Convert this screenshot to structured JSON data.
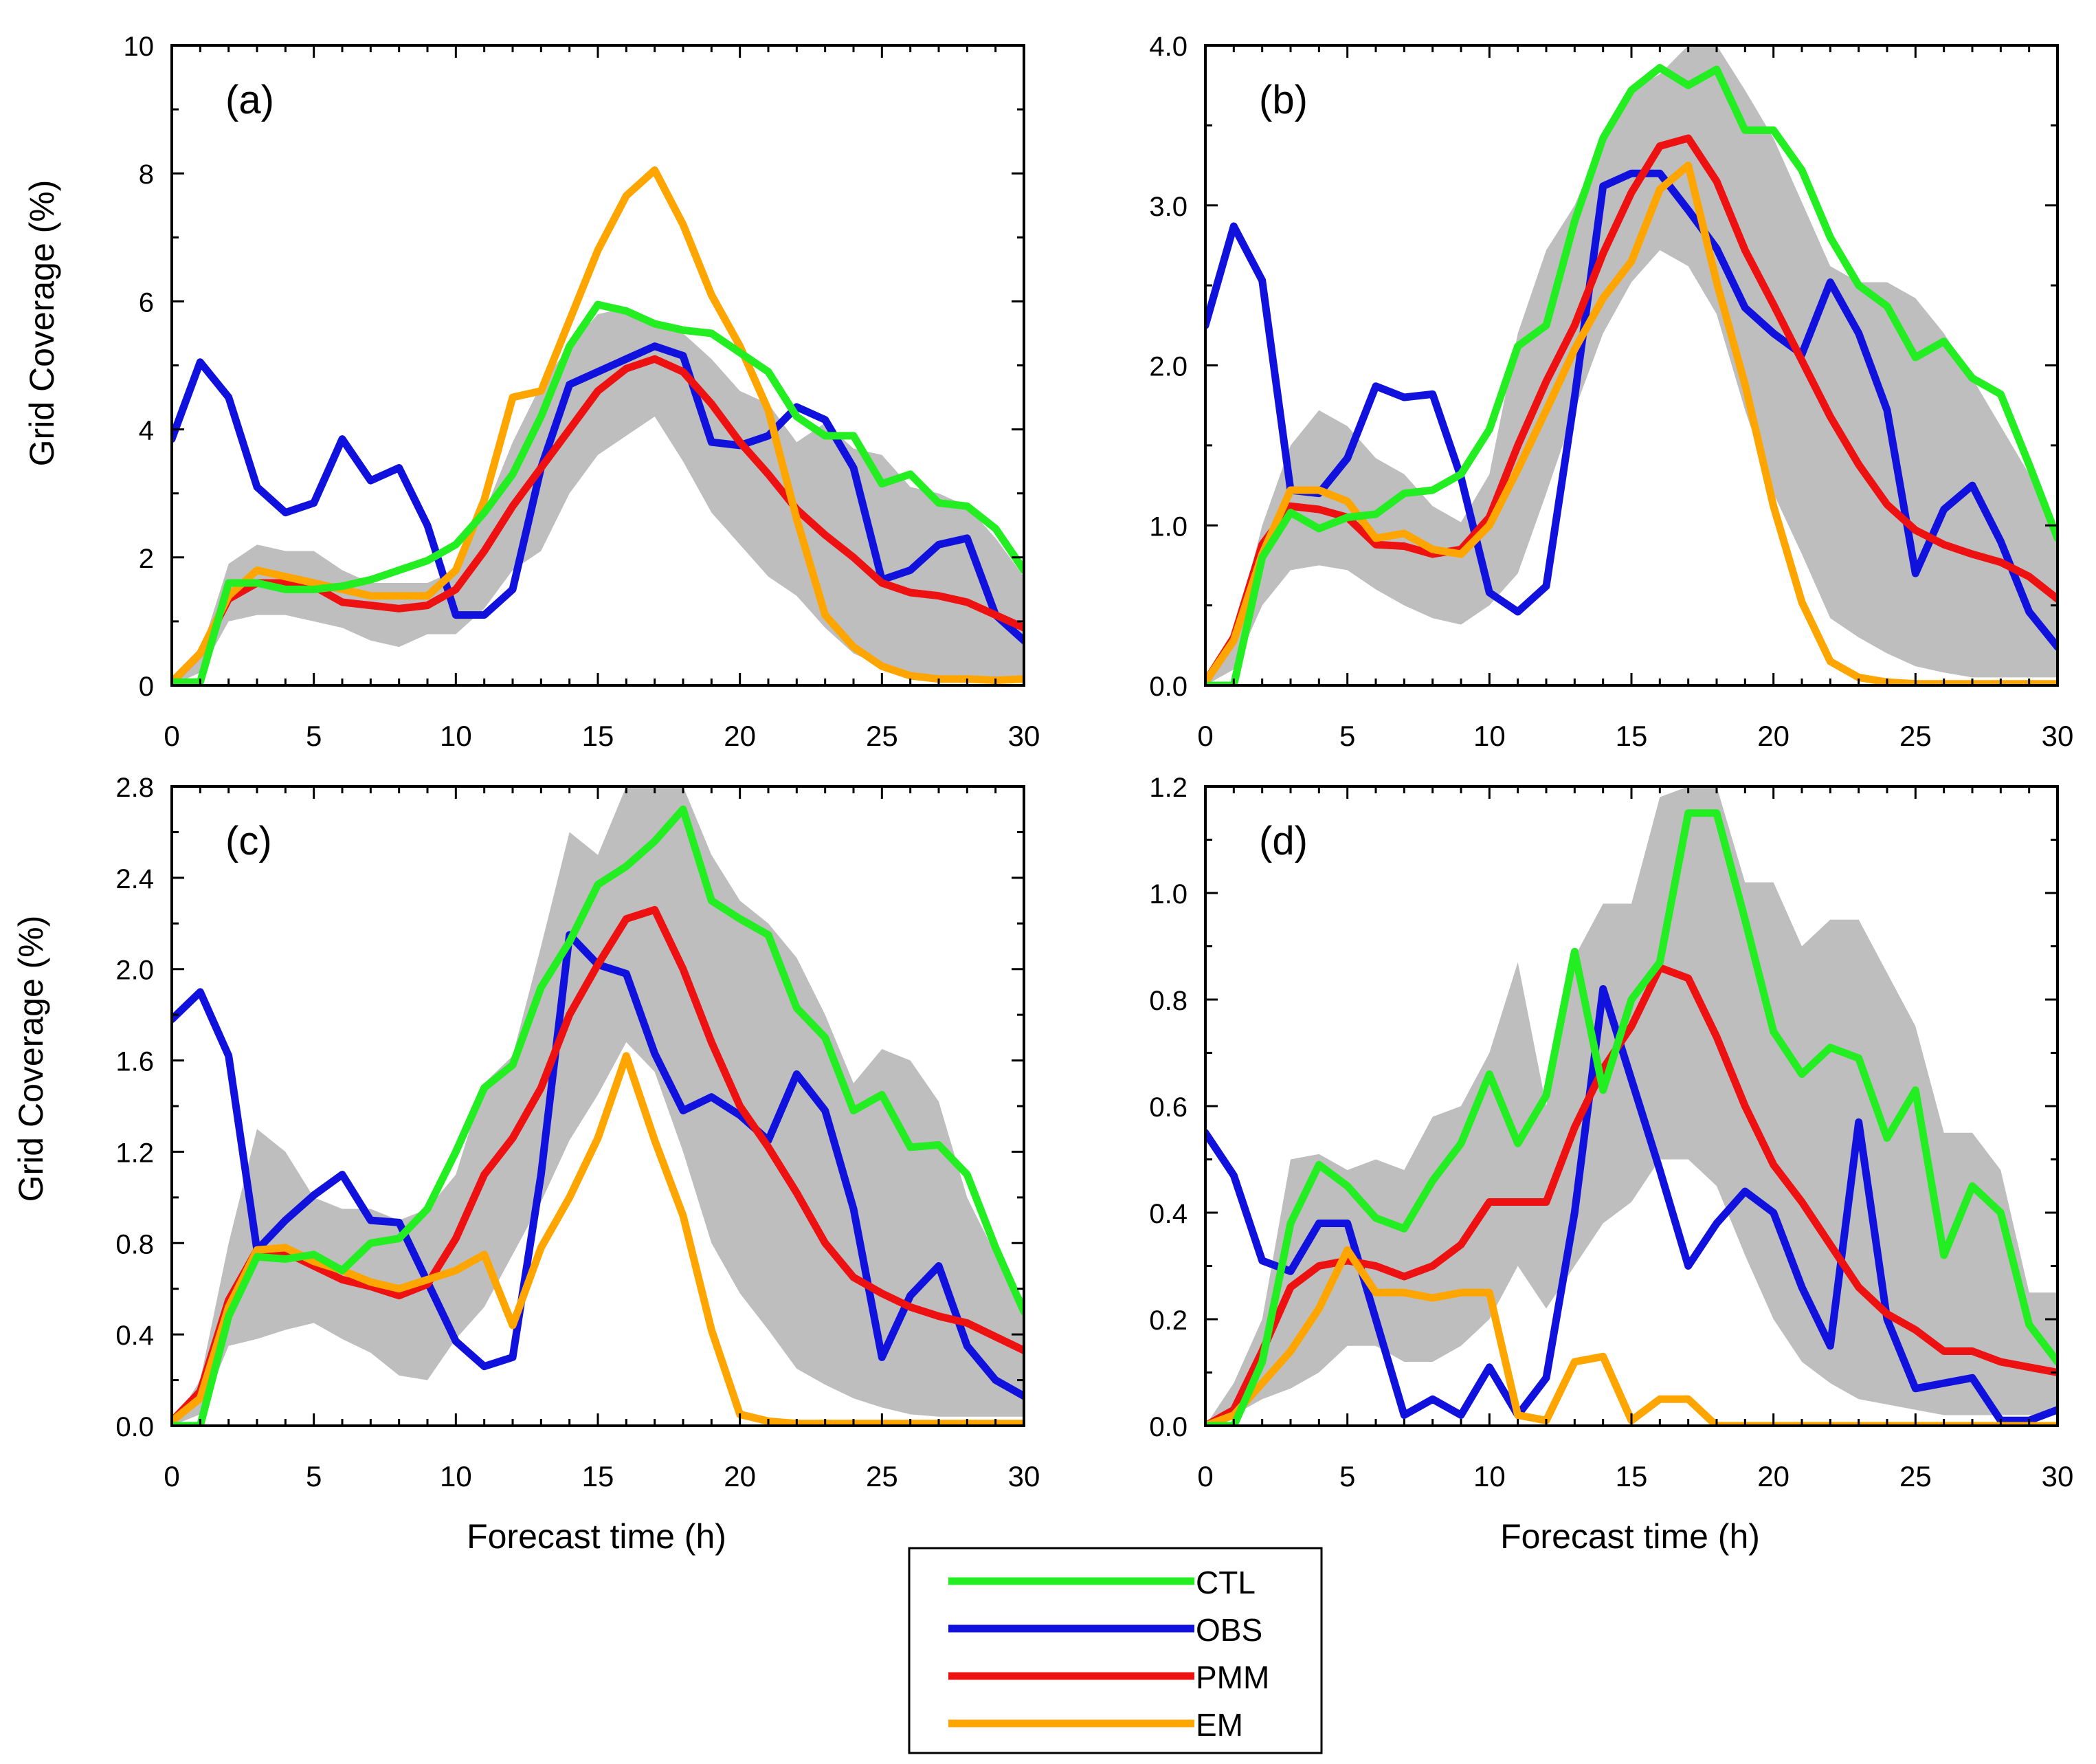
{
  "figure": {
    "x_axis_label": "Forecast time (h)",
    "y_axis_label": "Grid Coverage (%)"
  },
  "legend": {
    "entries": [
      {
        "name": "CTL",
        "color": "#22ee22"
      },
      {
        "name": "OBS",
        "color": "#1111dd"
      },
      {
        "name": "PMM",
        "color": "#ee1111"
      },
      {
        "name": "EM",
        "color": "#ffa500"
      }
    ]
  },
  "colors": {
    "CTL": "#22ee22",
    "OBS": "#1111dd",
    "PMM": "#ee1111",
    "EM": "#ffa500",
    "spread": "#bebebe"
  },
  "chart_data": [
    {
      "type": "line",
      "panel_label": "(a)",
      "xlim": [
        0,
        30
      ],
      "ylim": [
        0,
        10
      ],
      "x_ticks": [
        0,
        5,
        10,
        15,
        20,
        25,
        30
      ],
      "y_ticks": [
        0,
        2,
        4,
        6,
        8,
        10
      ],
      "y_tick_labels": [
        "0",
        "2",
        "4",
        "6",
        "8",
        "10"
      ],
      "x": [
        0,
        1,
        2,
        3,
        4,
        5,
        6,
        7,
        8,
        9,
        10,
        11,
        12,
        13,
        14,
        15,
        16,
        17,
        18,
        19,
        20,
        21,
        22,
        23,
        24,
        25,
        26,
        27,
        28,
        29,
        30
      ],
      "spread_upper": [
        0,
        0.5,
        1.9,
        2.2,
        2.1,
        2.1,
        1.8,
        1.6,
        1.6,
        1.6,
        1.8,
        2.7,
        3.8,
        4.7,
        5.3,
        5.8,
        5.9,
        5.6,
        5.5,
        5.1,
        4.6,
        4.4,
        3.8,
        4.1,
        3.7,
        3.6,
        3.1,
        3.0,
        2.8,
        2.3,
        1.7
      ],
      "spread_lower": [
        0,
        0.2,
        1.0,
        1.1,
        1.1,
        1.0,
        0.9,
        0.7,
        0.6,
        0.8,
        0.8,
        1.2,
        1.8,
        2.1,
        3.0,
        3.6,
        3.9,
        4.2,
        3.5,
        2.7,
        2.2,
        1.7,
        1.4,
        0.9,
        0.5,
        0.3,
        0.2,
        0.1,
        0.1,
        0.1,
        0.1
      ],
      "series": [
        {
          "name": "CTL",
          "values": [
            0.05,
            0.05,
            1.6,
            1.6,
            1.5,
            1.5,
            1.55,
            1.65,
            1.8,
            1.95,
            2.2,
            2.7,
            3.3,
            4.2,
            5.3,
            5.95,
            5.85,
            5.65,
            5.55,
            5.5,
            5.2,
            4.9,
            4.2,
            3.9,
            3.9,
            3.15,
            3.3,
            2.85,
            2.8,
            2.45,
            1.8
          ]
        },
        {
          "name": "OBS",
          "values": [
            3.85,
            5.05,
            4.5,
            3.1,
            2.7,
            2.85,
            3.85,
            3.2,
            3.4,
            2.5,
            1.1,
            1.1,
            1.5,
            3.4,
            4.7,
            4.9,
            5.1,
            5.3,
            5.15,
            3.8,
            3.75,
            3.9,
            4.35,
            4.15,
            3.4,
            1.65,
            1.8,
            2.2,
            2.3,
            1.1,
            0.7
          ]
        },
        {
          "name": "PMM",
          "values": [
            0.05,
            0.5,
            1.35,
            1.6,
            1.6,
            1.55,
            1.3,
            1.25,
            1.2,
            1.25,
            1.5,
            2.1,
            2.8,
            3.4,
            4.0,
            4.6,
            4.95,
            5.1,
            4.9,
            4.4,
            3.8,
            3.3,
            2.75,
            2.35,
            2.0,
            1.6,
            1.45,
            1.4,
            1.3,
            1.1,
            0.9
          ]
        },
        {
          "name": "EM",
          "values": [
            0.05,
            0.5,
            1.4,
            1.8,
            1.7,
            1.6,
            1.5,
            1.4,
            1.4,
            1.4,
            1.8,
            2.9,
            4.5,
            4.6,
            5.7,
            6.8,
            7.65,
            8.05,
            7.2,
            6.1,
            5.3,
            4.3,
            2.6,
            1.1,
            0.6,
            0.3,
            0.15,
            0.1,
            0.1,
            0.08,
            0.1
          ]
        }
      ]
    },
    {
      "type": "line",
      "panel_label": "(b)",
      "xlim": [
        0,
        30
      ],
      "ylim": [
        0,
        4
      ],
      "x_ticks": [
        0,
        5,
        10,
        15,
        20,
        25,
        30
      ],
      "y_ticks": [
        0,
        1,
        2,
        3,
        4
      ],
      "y_tick_labels": [
        "0.0",
        "1.0",
        "2.0",
        "3.0",
        "4.0"
      ],
      "x": [
        0,
        1,
        2,
        3,
        4,
        5,
        6,
        7,
        8,
        9,
        10,
        11,
        12,
        13,
        14,
        15,
        16,
        17,
        18,
        19,
        20,
        21,
        22,
        23,
        24,
        25,
        26,
        27,
        28,
        29,
        30
      ],
      "spread_upper": [
        0,
        0.3,
        1.0,
        1.5,
        1.72,
        1.62,
        1.42,
        1.32,
        1.12,
        1.02,
        1.32,
        2.2,
        2.72,
        3.0,
        3.42,
        3.72,
        3.82,
        4.0,
        4.0,
        3.72,
        3.42,
        3.02,
        2.62,
        2.52,
        2.52,
        2.42,
        2.2,
        1.92,
        1.62,
        1.32,
        0.92
      ],
      "spread_lower": [
        0,
        0.1,
        0.5,
        0.72,
        0.75,
        0.72,
        0.6,
        0.5,
        0.42,
        0.38,
        0.5,
        0.7,
        1.2,
        1.72,
        2.2,
        2.52,
        2.72,
        2.62,
        2.32,
        1.72,
        1.2,
        0.82,
        0.42,
        0.3,
        0.2,
        0.12,
        0.08,
        0.05,
        0.05,
        0.05,
        0.05
      ],
      "series": [
        {
          "name": "CTL",
          "values": [
            0.0,
            0.0,
            0.8,
            1.08,
            0.98,
            1.05,
            1.07,
            1.2,
            1.22,
            1.32,
            1.6,
            2.12,
            2.25,
            2.9,
            3.42,
            3.72,
            3.86,
            3.75,
            3.85,
            3.47,
            3.47,
            3.22,
            2.8,
            2.5,
            2.37,
            2.05,
            2.15,
            1.92,
            1.82,
            1.38,
            0.92
          ]
        },
        {
          "name": "OBS",
          "values": [
            2.25,
            2.87,
            2.53,
            1.22,
            1.2,
            1.42,
            1.87,
            1.8,
            1.82,
            1.3,
            0.58,
            0.46,
            0.62,
            1.8,
            3.12,
            3.2,
            3.2,
            2.97,
            2.73,
            2.36,
            2.2,
            2.07,
            2.52,
            2.2,
            1.72,
            0.7,
            1.1,
            1.25,
            0.9,
            0.46,
            0.24
          ]
        },
        {
          "name": "PMM",
          "values": [
            0.02,
            0.3,
            0.88,
            1.12,
            1.1,
            1.05,
            0.88,
            0.87,
            0.82,
            0.85,
            1.05,
            1.5,
            1.9,
            2.25,
            2.7,
            3.08,
            3.37,
            3.42,
            3.15,
            2.72,
            2.38,
            2.03,
            1.68,
            1.38,
            1.13,
            0.97,
            0.88,
            0.82,
            0.77,
            0.68,
            0.54
          ]
        },
        {
          "name": "EM",
          "values": [
            0.02,
            0.28,
            0.82,
            1.22,
            1.22,
            1.15,
            0.92,
            0.95,
            0.85,
            0.82,
            1.0,
            1.35,
            1.72,
            2.1,
            2.42,
            2.65,
            3.1,
            3.25,
            2.52,
            1.88,
            1.12,
            0.52,
            0.15,
            0.05,
            0.02,
            0.01,
            0.01,
            0.01,
            0.01,
            0.01,
            0.01
          ]
        }
      ]
    },
    {
      "type": "line",
      "panel_label": "(c)",
      "xlim": [
        0,
        30
      ],
      "ylim": [
        0,
        2.8
      ],
      "x_ticks": [
        0,
        5,
        10,
        15,
        20,
        25,
        30
      ],
      "y_ticks": [
        0,
        0.4,
        0.8,
        1.2,
        1.6,
        2.0,
        2.4,
        2.8
      ],
      "y_tick_labels": [
        "0.0",
        "0.4",
        "0.8",
        "1.2",
        "1.6",
        "2.0",
        "2.4",
        "2.8"
      ],
      "x": [
        0,
        1,
        2,
        3,
        4,
        5,
        6,
        7,
        8,
        9,
        10,
        11,
        12,
        13,
        14,
        15,
        16,
        17,
        18,
        19,
        20,
        21,
        22,
        23,
        24,
        25,
        26,
        27,
        28,
        29,
        30
      ],
      "spread_upper": [
        0,
        0.2,
        0.8,
        1.3,
        1.2,
        1.0,
        0.95,
        0.95,
        0.9,
        0.95,
        1.1,
        1.5,
        1.62,
        2.1,
        2.6,
        2.5,
        2.8,
        2.8,
        2.8,
        2.5,
        2.3,
        2.2,
        2.05,
        1.8,
        1.5,
        1.65,
        1.6,
        1.42,
        1.0,
        0.75,
        0.55
      ],
      "spread_lower": [
        0,
        0.05,
        0.35,
        0.38,
        0.42,
        0.45,
        0.38,
        0.32,
        0.22,
        0.2,
        0.38,
        0.52,
        0.75,
        0.98,
        1.25,
        1.45,
        1.68,
        1.55,
        1.2,
        0.8,
        0.58,
        0.42,
        0.25,
        0.18,
        0.12,
        0.08,
        0.05,
        0.04,
        0.04,
        0.04,
        0.04
      ],
      "series": [
        {
          "name": "CTL",
          "values": [
            0.0,
            0.0,
            0.48,
            0.74,
            0.73,
            0.75,
            0.68,
            0.8,
            0.82,
            0.95,
            1.2,
            1.48,
            1.58,
            1.92,
            2.12,
            2.37,
            2.45,
            2.56,
            2.7,
            2.3,
            2.22,
            2.15,
            1.83,
            1.7,
            1.38,
            1.45,
            1.22,
            1.23,
            1.1,
            0.78,
            0.5
          ]
        },
        {
          "name": "OBS",
          "values": [
            1.78,
            1.9,
            1.62,
            0.77,
            0.9,
            1.01,
            1.1,
            0.9,
            0.89,
            0.63,
            0.37,
            0.26,
            0.3,
            1.1,
            2.15,
            2.02,
            1.98,
            1.63,
            1.38,
            1.44,
            1.36,
            1.25,
            1.54,
            1.38,
            0.95,
            0.3,
            0.57,
            0.7,
            0.35,
            0.2,
            0.13
          ]
        },
        {
          "name": "PMM",
          "values": [
            0.02,
            0.15,
            0.55,
            0.77,
            0.76,
            0.7,
            0.64,
            0.61,
            0.57,
            0.62,
            0.82,
            1.1,
            1.26,
            1.48,
            1.8,
            2.02,
            2.22,
            2.26,
            2.0,
            1.68,
            1.4,
            1.22,
            1.02,
            0.8,
            0.65,
            0.58,
            0.52,
            0.48,
            0.45,
            0.39,
            0.33
          ]
        },
        {
          "name": "EM",
          "values": [
            0.02,
            0.12,
            0.52,
            0.77,
            0.78,
            0.72,
            0.68,
            0.63,
            0.6,
            0.64,
            0.68,
            0.75,
            0.44,
            0.78,
            1.0,
            1.26,
            1.62,
            1.25,
            0.92,
            0.42,
            0.05,
            0.02,
            0.01,
            0.01,
            0.01,
            0.01,
            0.01,
            0.01,
            0.01,
            0.01,
            0.01
          ]
        }
      ]
    },
    {
      "type": "line",
      "panel_label": "(d)",
      "xlim": [
        0,
        30
      ],
      "ylim": [
        0,
        1.2
      ],
      "x_ticks": [
        0,
        5,
        10,
        15,
        20,
        25,
        30
      ],
      "y_ticks": [
        0,
        0.2,
        0.4,
        0.6,
        0.8,
        1.0,
        1.2
      ],
      "y_tick_labels": [
        "0.0",
        "0.2",
        "0.4",
        "0.6",
        "0.8",
        "1.0",
        "1.2"
      ],
      "x": [
        0,
        1,
        2,
        3,
        4,
        5,
        6,
        7,
        8,
        9,
        10,
        11,
        12,
        13,
        14,
        15,
        16,
        17,
        18,
        19,
        20,
        21,
        22,
        23,
        24,
        25,
        26,
        27,
        28,
        29,
        30
      ],
      "spread_upper": [
        0,
        0.08,
        0.2,
        0.5,
        0.51,
        0.48,
        0.5,
        0.48,
        0.58,
        0.6,
        0.7,
        0.87,
        0.6,
        0.88,
        0.98,
        0.98,
        1.18,
        1.2,
        1.2,
        1.02,
        1.02,
        0.9,
        0.95,
        0.95,
        0.85,
        0.75,
        0.55,
        0.55,
        0.48,
        0.25,
        0.25
      ],
      "spread_lower": [
        0,
        0.02,
        0.05,
        0.07,
        0.1,
        0.15,
        0.15,
        0.12,
        0.12,
        0.15,
        0.2,
        0.3,
        0.22,
        0.3,
        0.38,
        0.42,
        0.5,
        0.5,
        0.45,
        0.32,
        0.2,
        0.12,
        0.08,
        0.05,
        0.04,
        0.03,
        0.02,
        0.02,
        0.02,
        0.02,
        0.02
      ],
      "series": [
        {
          "name": "CTL",
          "values": [
            0.0,
            0.0,
            0.12,
            0.38,
            0.49,
            0.45,
            0.39,
            0.37,
            0.46,
            0.53,
            0.66,
            0.53,
            0.62,
            0.89,
            0.63,
            0.8,
            0.87,
            1.15,
            1.15,
            0.95,
            0.74,
            0.66,
            0.71,
            0.69,
            0.54,
            0.63,
            0.32,
            0.45,
            0.4,
            0.19,
            0.12
          ]
        },
        {
          "name": "OBS",
          "values": [
            0.55,
            0.47,
            0.31,
            0.29,
            0.38,
            0.38,
            0.2,
            0.02,
            0.05,
            0.02,
            0.11,
            0.02,
            0.09,
            0.4,
            0.82,
            0.65,
            0.48,
            0.3,
            0.38,
            0.44,
            0.4,
            0.26,
            0.15,
            0.57,
            0.2,
            0.07,
            0.08,
            0.09,
            0.01,
            0.01,
            0.03
          ]
        },
        {
          "name": "PMM",
          "values": [
            0.0,
            0.03,
            0.14,
            0.26,
            0.3,
            0.31,
            0.3,
            0.28,
            0.3,
            0.34,
            0.42,
            0.42,
            0.42,
            0.56,
            0.67,
            0.75,
            0.86,
            0.84,
            0.73,
            0.6,
            0.49,
            0.42,
            0.34,
            0.26,
            0.21,
            0.18,
            0.14,
            0.14,
            0.12,
            0.11,
            0.1
          ]
        },
        {
          "name": "EM",
          "values": [
            0.0,
            0.02,
            0.08,
            0.14,
            0.22,
            0.33,
            0.25,
            0.25,
            0.24,
            0.25,
            0.25,
            0.02,
            0.01,
            0.12,
            0.13,
            0.01,
            0.05,
            0.05,
            0.0,
            0.0,
            0.0,
            0.0,
            0.0,
            0.0,
            0.0,
            0.0,
            0.0,
            0.0,
            0.0,
            0.0,
            0.0
          ]
        }
      ]
    }
  ]
}
